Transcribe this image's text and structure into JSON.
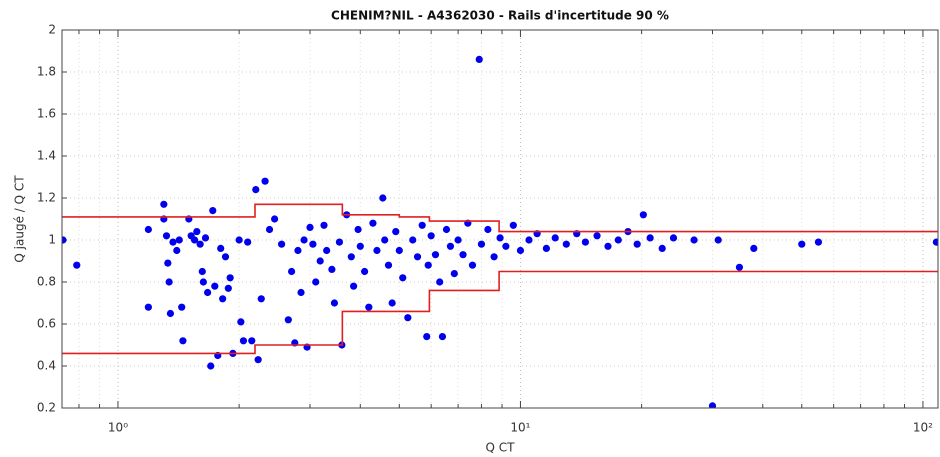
{
  "chart_data": {
    "type": "scatter",
    "title": "CHENIM?NIL - A4362030 - Rails d'incertitude 90 %",
    "xlabel": "Q CT",
    "ylabel": "Q jaugé / Q CT",
    "xscale": "log",
    "grid": true,
    "xlim": [
      0.726,
      109
    ],
    "ylim": [
      0.2,
      2
    ],
    "xticks": [
      {
        "value": 1,
        "label": "10⁰"
      },
      {
        "value": 10,
        "label": "10¹"
      },
      {
        "value": 100,
        "label": "10²"
      }
    ],
    "xminorticks": [
      0.8,
      0.9,
      2,
      3,
      4,
      5,
      6,
      7,
      8,
      9,
      20,
      30,
      40,
      50,
      60,
      70,
      80,
      90
    ],
    "yticks": [
      0.2,
      0.4,
      0.6,
      0.8,
      1,
      1.2,
      1.4,
      1.6,
      1.8,
      2
    ],
    "series": [
      {
        "type": "scatter",
        "color": "#0000ee",
        "x": [
          0.73,
          0.79,
          1.19,
          1.19,
          1.3,
          1.3,
          1.32,
          1.33,
          1.34,
          1.35,
          1.37,
          1.4,
          1.42,
          1.44,
          1.45,
          1.5,
          1.52,
          1.55,
          1.57,
          1.6,
          1.62,
          1.63,
          1.65,
          1.67,
          1.7,
          1.72,
          1.74,
          1.77,
          1.8,
          1.82,
          1.85,
          1.88,
          1.9,
          1.93,
          2,
          2.02,
          2.05,
          2.1,
          2.15,
          2.2,
          2.23,
          2.27,
          2.32,
          2.38,
          2.45,
          2.55,
          2.65,
          2.7,
          2.75,
          2.8,
          2.85,
          2.9,
          2.95,
          3,
          3.05,
          3.1,
          3.18,
          3.25,
          3.3,
          3.4,
          3.45,
          3.55,
          3.6,
          3.7,
          3.8,
          3.85,
          3.95,
          4,
          4.1,
          4.2,
          4.3,
          4.4,
          4.55,
          4.6,
          4.7,
          4.8,
          4.9,
          5,
          5.1,
          5.25,
          5.4,
          5.55,
          5.7,
          5.85,
          5.9,
          6,
          6.15,
          6.3,
          6.4,
          6.55,
          6.7,
          6.85,
          7,
          7.2,
          7.4,
          7.6,
          7.9,
          8,
          8.3,
          8.6,
          8.9,
          9.2,
          9.6,
          10,
          10.5,
          11,
          11.6,
          12.2,
          13,
          13.8,
          14.5,
          15.5,
          16.5,
          17.5,
          18.5,
          19.5,
          20.2,
          21,
          22.5,
          24,
          27,
          30,
          31,
          35,
          38,
          50,
          55,
          108
        ],
        "values": [
          1,
          0.88,
          1.05,
          0.68,
          1.17,
          1.1,
          1.02,
          0.89,
          0.8,
          0.65,
          0.99,
          0.95,
          1,
          0.68,
          0.52,
          1.1,
          1.02,
          1,
          1.04,
          0.98,
          0.85,
          0.8,
          1.01,
          0.75,
          0.4,
          1.14,
          0.78,
          0.45,
          0.96,
          0.72,
          0.92,
          0.77,
          0.82,
          0.46,
          1,
          0.61,
          0.52,
          0.99,
          0.52,
          1.24,
          0.43,
          0.72,
          1.28,
          1.05,
          1.1,
          0.98,
          0.62,
          0.85,
          0.51,
          0.95,
          0.75,
          1,
          0.49,
          1.06,
          0.98,
          0.8,
          0.9,
          1.07,
          0.95,
          0.86,
          0.7,
          0.99,
          0.5,
          1.12,
          0.92,
          0.78,
          1.05,
          0.97,
          0.85,
          0.68,
          1.08,
          0.95,
          1.2,
          1,
          0.88,
          0.7,
          1.04,
          0.95,
          0.82,
          0.63,
          1,
          0.92,
          1.07,
          0.54,
          0.88,
          1.02,
          0.93,
          0.8,
          0.54,
          1.05,
          0.97,
          0.84,
          1,
          0.93,
          1.08,
          0.88,
          1.86,
          0.98,
          1.05,
          0.92,
          1.01,
          0.97,
          1.07,
          0.95,
          1,
          1.03,
          0.96,
          1.01,
          0.98,
          1.03,
          0.99,
          1.02,
          0.97,
          1,
          1.04,
          0.98,
          1.12,
          1.01,
          0.96,
          1.01,
          1,
          0.21,
          1,
          0.87,
          0.96,
          0.98,
          0.99,
          0.99
        ]
      },
      {
        "type": "line",
        "color": "#e02020",
        "x": [
          0.726,
          2.19,
          2.19,
          3.61,
          3.61,
          5,
          5,
          5.94,
          5.94,
          8.85,
          8.85,
          109
        ],
        "values": [
          1.11,
          1.11,
          1.17,
          1.17,
          1.12,
          1.12,
          1.11,
          1.11,
          1.09,
          1.09,
          1.04,
          1.04
        ]
      },
      {
        "type": "line",
        "color": "#e02020",
        "x": [
          0.726,
          2.19,
          2.19,
          3.61,
          3.61,
          5.94,
          5.94,
          8.85,
          8.85,
          109
        ],
        "values": [
          0.46,
          0.46,
          0.5,
          0.5,
          0.66,
          0.66,
          0.76,
          0.76,
          0.85,
          0.85
        ]
      }
    ]
  }
}
